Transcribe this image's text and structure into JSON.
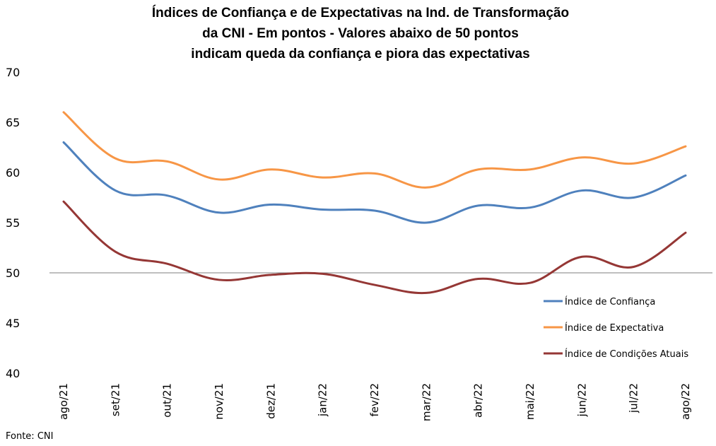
{
  "chart_data": {
    "type": "line",
    "title_lines": [
      "Índices de Confiança e de Expectativas na Ind. de Transformação",
      "da CNI - Em pontos - Valores abaixo de 50 pontos",
      "indicam queda da confiança e piora das expectativas"
    ],
    "xlabel": "",
    "ylabel": "",
    "ylim": [
      40,
      70
    ],
    "yticks": [
      40,
      45,
      50,
      55,
      60,
      65,
      70
    ],
    "categories": [
      "ago/21",
      "set/21",
      "out/21",
      "nov/21",
      "dez/21",
      "jan/22",
      "fev/22",
      "mar/22",
      "abr/22",
      "mai/22",
      "jun/22",
      "jul/22",
      "ago/22"
    ],
    "reference_line": 50,
    "grid": false,
    "legend_position": "right",
    "series": [
      {
        "name": "Índice de Confiança",
        "color": "#4f81bd",
        "values": [
          63.0,
          58.2,
          57.7,
          56.0,
          56.8,
          56.3,
          56.2,
          55.0,
          56.7,
          56.5,
          58.2,
          57.5,
          59.7
        ]
      },
      {
        "name": "Índice de Expectativa",
        "color": "#f79646",
        "values": [
          66.0,
          61.4,
          61.1,
          59.3,
          60.3,
          59.5,
          59.9,
          58.5,
          60.3,
          60.3,
          61.5,
          60.9,
          62.6
        ]
      },
      {
        "name": "Índice de Condições Atuais",
        "color": "#953735",
        "values": [
          57.1,
          52.1,
          50.9,
          49.3,
          49.8,
          49.9,
          48.8,
          48.0,
          49.4,
          49.0,
          51.6,
          50.6,
          54.0
        ]
      }
    ]
  },
  "source": "Fonte: CNI"
}
